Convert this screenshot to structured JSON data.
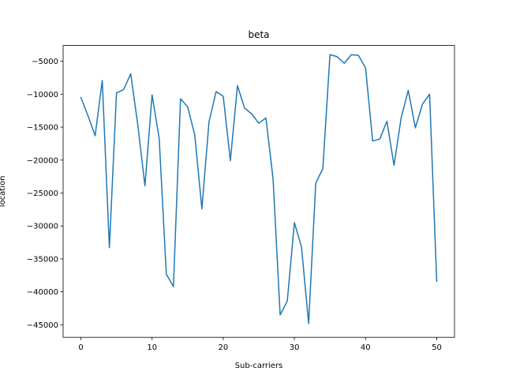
{
  "chart_data": {
    "type": "line",
    "title": "beta",
    "xlabel": "Sub-carriers",
    "ylabel": "location",
    "xlim": [
      -2.5,
      52.5
    ],
    "ylim": [
      -46900,
      -2600
    ],
    "xticks": [
      0,
      10,
      20,
      30,
      40,
      50
    ],
    "yticks": [
      -45000,
      -40000,
      -35000,
      -30000,
      -25000,
      -20000,
      -15000,
      -10000,
      -5000
    ],
    "xtick_labels": [
      "0",
      "10",
      "20",
      "30",
      "40",
      "50"
    ],
    "ytick_labels": [
      "−45000",
      "−40000",
      "−35000",
      "−30000",
      "−25000",
      "−20000",
      "−15000",
      "−10000",
      "−5000"
    ],
    "grid": false,
    "line_color": "#1f77b4",
    "series": [
      {
        "x": [
          0,
          1,
          2,
          3,
          4,
          5,
          6,
          7,
          8,
          9,
          10,
          11,
          12,
          13,
          14,
          15,
          16,
          17,
          18,
          19,
          20,
          21,
          22,
          23,
          24,
          25,
          26,
          27,
          28,
          29,
          30,
          31,
          32,
          33,
          34,
          35,
          36,
          37,
          38,
          39,
          40,
          41,
          42,
          43,
          44,
          45,
          46,
          47,
          48,
          49,
          50
        ],
        "values": [
          -10500,
          -13300,
          -16300,
          -7900,
          -33300,
          -9800,
          -9300,
          -6900,
          -14700,
          -23900,
          -10100,
          -16700,
          -37300,
          -39200,
          -10700,
          -11900,
          -16200,
          -27400,
          -14200,
          -9600,
          -10300,
          -20100,
          -8700,
          -12100,
          -13000,
          -14400,
          -13600,
          -22800,
          -43500,
          -41400,
          -29500,
          -33200,
          -44800,
          -23500,
          -21300,
          -4000,
          -4300,
          -5300,
          -4000,
          -4100,
          -6000,
          -17100,
          -16800,
          -14100,
          -20800,
          -13600,
          -9400,
          -15100,
          -11500,
          -10000,
          -38400
        ]
      }
    ]
  }
}
